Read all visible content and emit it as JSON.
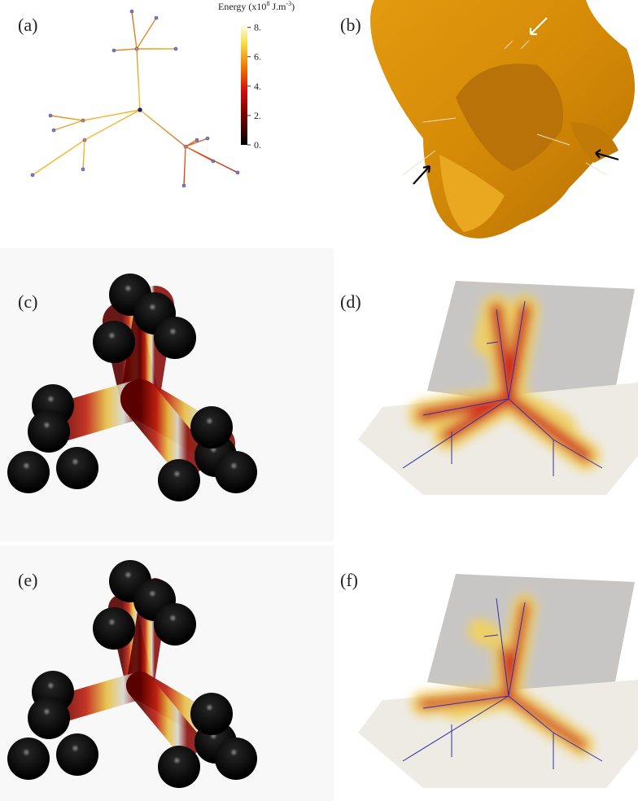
{
  "panels": [
    {
      "label": "(a)"
    },
    {
      "label": "(b)"
    },
    {
      "label": "(c)"
    },
    {
      "label": "(d)"
    },
    {
      "label": "(e)"
    },
    {
      "label": "(f)"
    }
  ],
  "colorbar": {
    "title": {
      "prefix": "Energy  (x10",
      "exponent": "8",
      "unit": " J.m",
      "unit_exponent": "-3",
      "suffix": ")"
    },
    "range": [
      0,
      8.2
    ],
    "ticks": [
      {
        "value": 8,
        "label": "8."
      },
      {
        "value": 6,
        "label": "6."
      },
      {
        "value": 4,
        "label": "4."
      },
      {
        "value": 2,
        "label": "2."
      },
      {
        "value": 0,
        "label": "0."
      }
    ]
  }
}
